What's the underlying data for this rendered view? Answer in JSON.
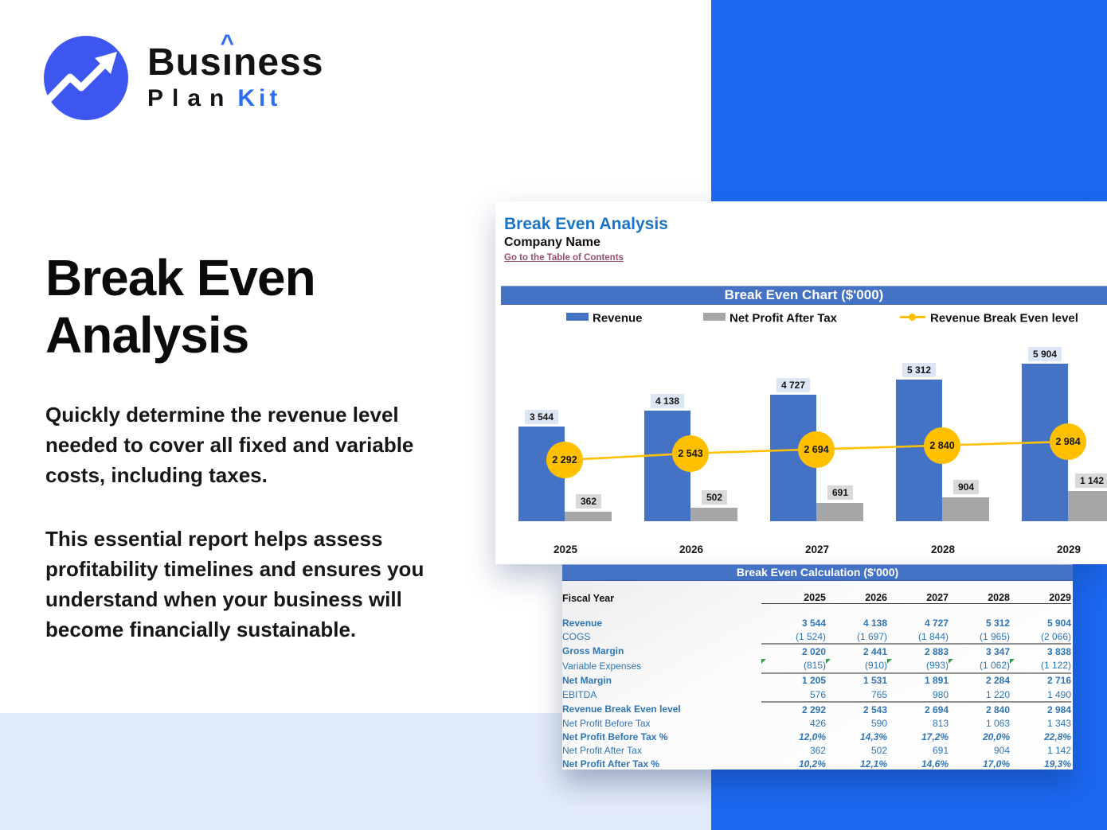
{
  "logo": {
    "word_pre": "Bus",
    "word_i": "ı",
    "caret": "^",
    "word_post": "ness",
    "word_plan": "Plan",
    "word_kit": "Kit"
  },
  "hero": {
    "title_line1": "Break Even",
    "title_line2": "Analysis",
    "paragraph1": "Quickly determine the revenue level needed to cover all fixed and variable costs, including taxes.",
    "paragraph2": "This essential report helps assess profitability timelines and ensures you understand when your business will become financially sustainable."
  },
  "sheet": {
    "title": "Break Even Analysis",
    "subtitle": "Company Name",
    "link": "Go to the Table of Contents"
  },
  "chart_data": {
    "type": "bar",
    "title": "Break Even Chart ($'000)",
    "categories": [
      "2025",
      "2026",
      "2027",
      "2028",
      "2029"
    ],
    "series": [
      {
        "name": "Revenue",
        "kind": "bar",
        "color": "#4472C4",
        "values": [
          3544,
          4138,
          4727,
          5312,
          5904
        ],
        "labels": [
          "3 544",
          "4 138",
          "4 727",
          "5 312",
          "5 904"
        ]
      },
      {
        "name": "Net Profit After Tax",
        "kind": "bar",
        "color": "#A6A6A6",
        "values": [
          362,
          502,
          691,
          904,
          1142
        ],
        "labels": [
          "362",
          "502",
          "691",
          "904",
          "1 142"
        ]
      },
      {
        "name": "Revenue Break Even level",
        "kind": "line",
        "color": "#FFC000",
        "values": [
          2292,
          2543,
          2694,
          2840,
          2984
        ],
        "labels": [
          "2 292",
          "2 543",
          "2 694",
          "2 840",
          "2 984"
        ]
      }
    ],
    "ylim": [
      0,
      6500
    ],
    "grid": false,
    "legend_position": "top"
  },
  "table": {
    "title": "Break Even Calculation ($'000)",
    "corner_label": "Fiscal Year",
    "years": [
      "2025",
      "2026",
      "2027",
      "2028",
      "2029"
    ],
    "rows": [
      {
        "label": "Revenue",
        "style": "bold",
        "values": [
          "3 544",
          "4 138",
          "4 727",
          "5 312",
          "5 904"
        ],
        "rule_below": false,
        "flags": false
      },
      {
        "label": "COGS",
        "style": "regular",
        "values": [
          "(1 524)",
          "(1 697)",
          "(1 844)",
          "(1 965)",
          "(2 066)"
        ],
        "rule_below": true,
        "flags": false
      },
      {
        "label": "Gross Margin",
        "style": "bold",
        "values": [
          "2 020",
          "2 441",
          "2 883",
          "3 347",
          "3 838"
        ],
        "rule_below": false,
        "flags": false
      },
      {
        "label": "Variable Expenses",
        "style": "indent",
        "values": [
          "(815)",
          "(910)",
          "(993)",
          "(1 062)",
          "(1 122)"
        ],
        "rule_below": true,
        "flags": true
      },
      {
        "label": "Net Margin",
        "style": "bold",
        "values": [
          "1 205",
          "1 531",
          "1 891",
          "2 284",
          "2 716"
        ],
        "rule_below": false,
        "flags": false
      },
      {
        "label": "EBITDA",
        "style": "indent",
        "values": [
          "576",
          "765",
          "980",
          "1 220",
          "1 490"
        ],
        "rule_below": true,
        "flags": false
      },
      {
        "label": "Revenue Break Even level",
        "style": "bold",
        "values": [
          "2 292",
          "2 543",
          "2 694",
          "2 840",
          "2 984"
        ],
        "rule_below": false,
        "flags": false
      },
      {
        "label": "Net Profit Before Tax",
        "style": "indent",
        "values": [
          "426",
          "590",
          "813",
          "1 063",
          "1 343"
        ],
        "rule_below": false,
        "flags": false
      },
      {
        "label": "Net Profit Before Tax %",
        "style": "bold-italic",
        "values": [
          "12,0%",
          "14,3%",
          "17,2%",
          "20,0%",
          "22,8%"
        ],
        "rule_below": false,
        "flags": false
      },
      {
        "label": "Net Profit After Tax",
        "style": "indent",
        "values": [
          "362",
          "502",
          "691",
          "904",
          "1 142"
        ],
        "rule_below": false,
        "flags": false
      },
      {
        "label": "Net Profit After Tax %",
        "style": "bold-italic",
        "values": [
          "10,2%",
          "12,1%",
          "14,6%",
          "17,0%",
          "19,3%"
        ],
        "rule_below": false,
        "flags": false
      }
    ]
  },
  "colors": {
    "accent_blue": "#1B68F1",
    "lavender_band": "#E2EBF9",
    "banner_blue": "#4472C4",
    "bar_blue": "#4472C4",
    "bar_gray": "#A6A6A6",
    "break_even_orange": "#FFC000",
    "table_text_blue": "#2E75B6",
    "link_maroon": "#954F72",
    "logo_circle_blue": "#3E56F0",
    "kit_blue": "#2E6CF4"
  }
}
